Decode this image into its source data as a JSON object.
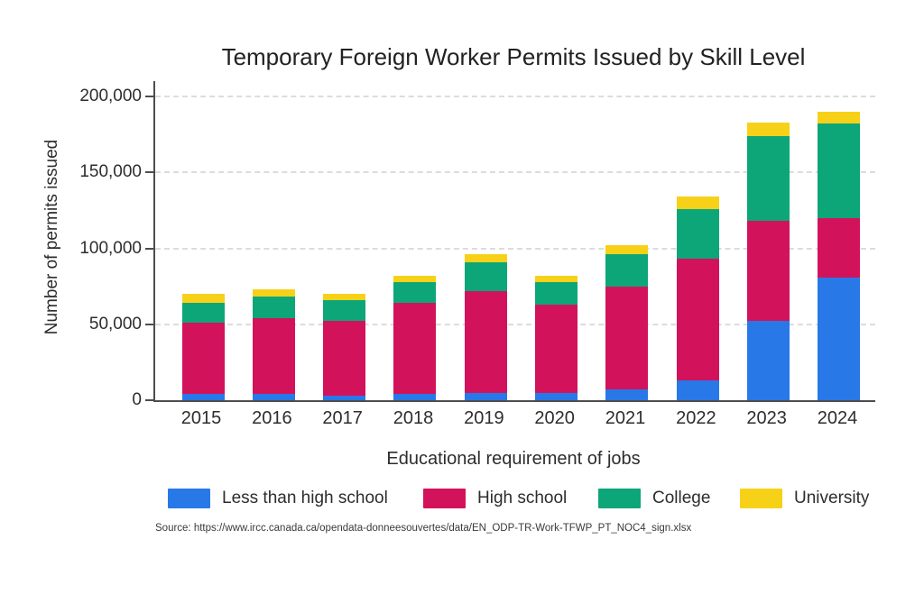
{
  "chart_data": {
    "type": "bar",
    "stacked": true,
    "title": "Temporary Foreign Worker Permits Issued by Skill Level",
    "xlabel": "Educational requirement of jobs",
    "ylabel": "Number of permits issued",
    "categories": [
      "2015",
      "2016",
      "2017",
      "2018",
      "2019",
      "2020",
      "2021",
      "2022",
      "2023",
      "2024"
    ],
    "series": [
      {
        "name": "Less than high school",
        "color": "#2878e8",
        "values": [
          4000,
          4000,
          3000,
          4000,
          5000,
          5000,
          7000,
          13000,
          52000,
          81000
        ]
      },
      {
        "name": "High school",
        "color": "#d3125c",
        "values": [
          47000,
          50000,
          49000,
          60000,
          67000,
          58000,
          68000,
          80000,
          66000,
          39000
        ]
      },
      {
        "name": "College",
        "color": "#0da678",
        "values": [
          13000,
          14000,
          14000,
          14000,
          19000,
          15000,
          21000,
          33000,
          56000,
          62000
        ]
      },
      {
        "name": "University",
        "color": "#f7d118",
        "values": [
          6000,
          5000,
          4000,
          4000,
          5000,
          4000,
          6000,
          8000,
          9000,
          8000
        ]
      }
    ],
    "ylim": [
      0,
      200000
    ],
    "yticks": [
      0,
      50000,
      100000,
      150000,
      200000
    ],
    "ytick_labels": [
      "0",
      "50,000",
      "100,000",
      "150,000",
      "200,000"
    ],
    "grid": "horizontal-dashed",
    "legend_position": "bottom"
  },
  "source_note": "Source: https://www.ircc.canada.ca/opendata-donneesouvertes/data/EN_ODP-TR-Work-TFWP_PT_NOC4_sign.xlsx"
}
